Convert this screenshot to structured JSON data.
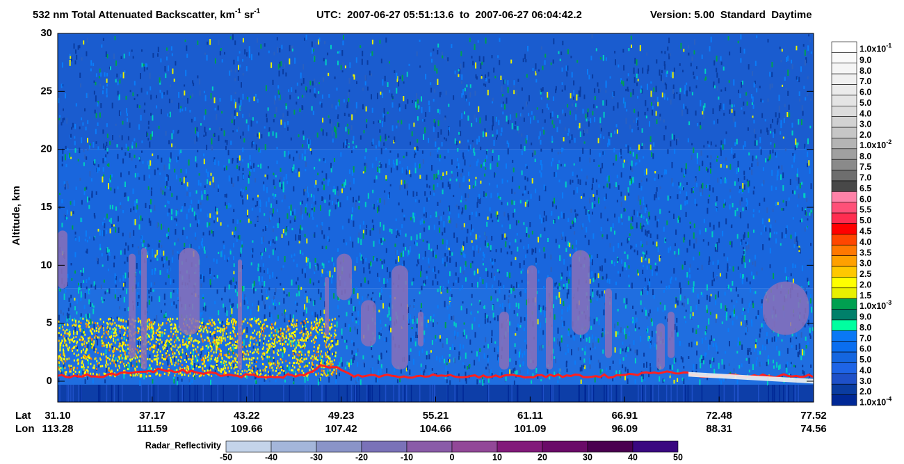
{
  "chart_data": {
    "type": "heatmap",
    "title": {
      "text": "532 nm Total Attenuated Backscatter, km",
      "sup1": "-1",
      "mid": " sr",
      "sup2": "-1"
    },
    "utc": "UTC:  2007-06-27 05:51:13.6  to  2007-06-27 06:04:42.2",
    "version": "Version: 5.00  Standard  Daytime",
    "ylabel": "Altitude, km",
    "ylim": [
      -1.8,
      30
    ],
    "yticks": [
      0,
      5,
      10,
      15,
      20,
      25,
      30
    ],
    "lat_label": "Lat",
    "lat": [
      "31.10",
      "37.17",
      "43.22",
      "49.23",
      "55.21",
      "61.11",
      "66.91",
      "72.48",
      "77.52"
    ],
    "lon_label": "Lon",
    "lon": [
      "113.28",
      "111.59",
      "109.66",
      "107.42",
      "104.66",
      "101.09",
      "96.09",
      "88.31",
      "74.56"
    ],
    "colorbar": {
      "labels": [
        {
          "base": "1.0x10",
          "exp": "-1"
        },
        "9.0",
        "8.0",
        "7.0",
        "6.0",
        "5.0",
        "4.0",
        "3.0",
        "2.0",
        {
          "base": "1.0x10",
          "exp": "-2"
        },
        "8.0",
        "7.5",
        "7.0",
        "6.5",
        "6.0",
        "5.5",
        "5.0",
        "4.5",
        "4.0",
        "3.5",
        "3.0",
        "2.5",
        "2.0",
        "1.5",
        {
          "base": "1.0x10",
          "exp": "-3"
        },
        "9.0",
        "8.0",
        "7.0",
        "6.0",
        "5.0",
        "4.0",
        "3.0",
        "2.0",
        {
          "base": "1.0x10",
          "exp": "-4"
        }
      ],
      "colors": [
        "#ffffff",
        "#fafafa",
        "#f5f5f5",
        "#f0f0f0",
        "#ebebeb",
        "#e4e4e4",
        "#dcdcdc",
        "#d2d2d2",
        "#c6c6c6",
        "#b4b4b4",
        "#a0a0a0",
        "#8a8a8a",
        "#6e6e6e",
        "#484848",
        "#ff82a8",
        "#ff5078",
        "#ff2d50",
        "#ff0000",
        "#ff4600",
        "#ff7800",
        "#ffa000",
        "#ffc800",
        "#ffff00",
        "#e8f000",
        "#00a050",
        "#00806a",
        "#00ffa0",
        "#0a78f5",
        "#0a6ef0",
        "#1466e0",
        "#1e64e6",
        "#1e50c8",
        "#0a3ca0",
        "#002896"
      ]
    },
    "radar_colorbar": {
      "label": "Radar_Reflectivity",
      "ticks": [
        -50,
        -40,
        -30,
        -20,
        -10,
        0,
        10,
        20,
        30,
        40,
        50
      ],
      "colors": [
        "#c4d4ea",
        "#a4b6da",
        "#8a94c8",
        "#7a72b8",
        "#8a5ca8",
        "#924898",
        "#821a7a",
        "#6a0a68",
        "#4a0050",
        "#3a0880"
      ]
    }
  }
}
